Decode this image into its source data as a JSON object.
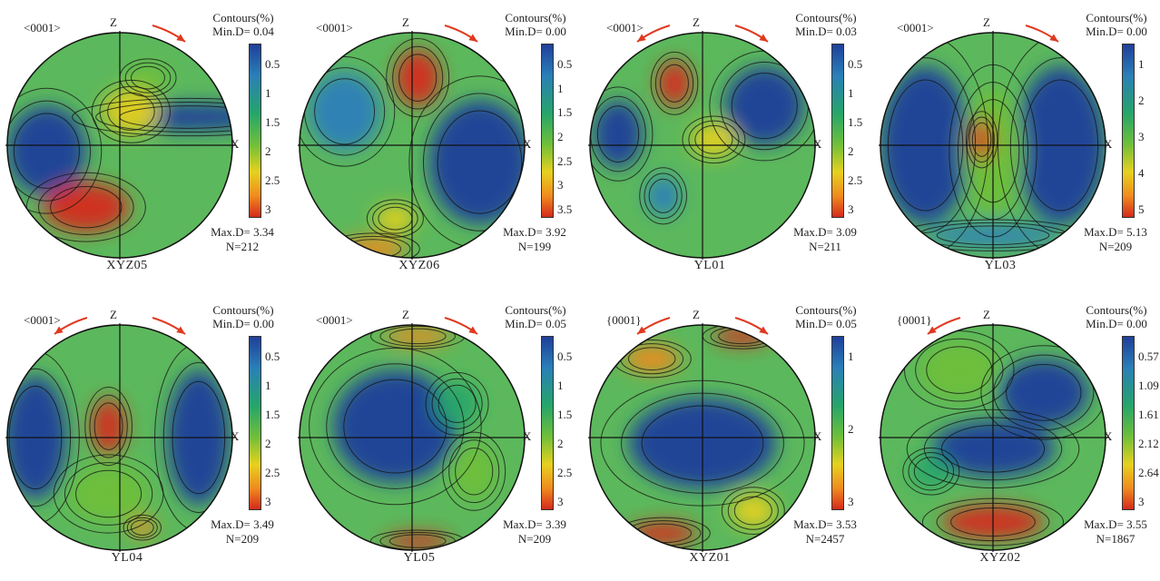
{
  "panels": [
    {
      "name": "XYZ05",
      "plane": "<0001>",
      "min": "Min.D= 0.04",
      "max": "Max.D= 3.34",
      "n": "N=212",
      "ticks": [
        "0.5",
        "1",
        "1.5",
        "2",
        "2.5",
        "3"
      ],
      "arrows": "right",
      "blobs": [
        [
          0.62,
          -0.25,
          0.75,
          0.12,
          "#1f3f9a"
        ],
        [
          -0.65,
          0.05,
          0.35,
          0.4,
          "#1f3f9a"
        ],
        [
          0.1,
          -0.3,
          0.25,
          0.2,
          "#e6d11f"
        ],
        [
          -0.3,
          0.55,
          0.38,
          0.22,
          "#d42a1c"
        ],
        [
          0.25,
          -0.6,
          0.18,
          0.12,
          "#6fbf3a"
        ]
      ]
    },
    {
      "name": "XYZ06",
      "plane": "<0001>",
      "min": "Min.D= 0.00",
      "max": "Max.D= 3.92",
      "n": "N=199",
      "ticks": [
        "0.5",
        "1",
        "1.5",
        "2",
        "2.5",
        "3",
        "3.5"
      ],
      "arrows": "right",
      "blobs": [
        [
          0.6,
          0.15,
          0.45,
          0.55,
          "#1f3f9a"
        ],
        [
          -0.6,
          -0.3,
          0.32,
          0.35,
          "#2a7fb8"
        ],
        [
          0.05,
          -0.6,
          0.2,
          0.25,
          "#d42a1c"
        ],
        [
          -0.15,
          0.65,
          0.18,
          0.12,
          "#e6d11f"
        ],
        [
          -0.35,
          0.92,
          0.3,
          0.1,
          "#f08a1e"
        ]
      ]
    },
    {
      "name": "YL01",
      "plane": "<0001>",
      "min": "Min.D= 0.03",
      "max": "Max.D= 3.09",
      "n": "N=211",
      "ticks": [
        "0.5",
        "1",
        "1.5",
        "2",
        "2.5",
        "3"
      ],
      "arrows": "both",
      "blobs": [
        [
          0.55,
          -0.35,
          0.35,
          0.35,
          "#1f3f9a"
        ],
        [
          -0.75,
          -0.1,
          0.22,
          0.3,
          "#1f3f9a"
        ],
        [
          -0.25,
          -0.55,
          0.15,
          0.2,
          "#d42a1c"
        ],
        [
          0.1,
          -0.05,
          0.2,
          0.15,
          "#e6d11f"
        ],
        [
          -0.35,
          0.45,
          0.15,
          0.18,
          "#2a7fb8"
        ]
      ]
    },
    {
      "name": "YL03",
      "plane": "<0001>",
      "min": "Min.D= 0.00",
      "max": "Max.D= 5.13",
      "n": "N=209",
      "ticks": [
        "1",
        "2",
        "3",
        "4",
        "5"
      ],
      "arrows": "right",
      "blobs": [
        [
          -0.6,
          0.0,
          0.4,
          0.7,
          "#1f3f9a"
        ],
        [
          0.6,
          0.0,
          0.4,
          0.7,
          "#1f3f9a"
        ],
        [
          0.0,
          0.05,
          0.28,
          0.55,
          "#6fbf3a"
        ],
        [
          -0.1,
          -0.05,
          0.1,
          0.18,
          "#d42a1c"
        ],
        [
          0.0,
          0.8,
          0.6,
          0.1,
          "#2a7fb8"
        ]
      ]
    },
    {
      "name": "YL04",
      "plane": "<0001>",
      "min": "Min.D= 0.00",
      "max": "Max.D= 3.49",
      "n": "N=209",
      "ticks": [
        "0.5",
        "1",
        "1.5",
        "2",
        "2.5",
        "3"
      ],
      "arrows": "both",
      "blobs": [
        [
          -0.75,
          0.0,
          0.28,
          0.55,
          "#1f3f9a"
        ],
        [
          0.7,
          0.0,
          0.28,
          0.6,
          "#1f3f9a"
        ],
        [
          -0.1,
          -0.1,
          0.15,
          0.25,
          "#d42a1c"
        ],
        [
          0.2,
          0.8,
          0.12,
          0.08,
          "#f08a1e"
        ],
        [
          -0.1,
          0.5,
          0.35,
          0.25,
          "#6fbf3a"
        ]
      ]
    },
    {
      "name": "YL05",
      "plane": "<0001>",
      "min": "Min.D= 0.05",
      "max": "Max.D= 3.39",
      "n": "N=209",
      "ticks": [
        "0.5",
        "1",
        "1.5",
        "2",
        "2.5",
        "3"
      ],
      "arrows": "right",
      "blobs": [
        [
          -0.15,
          -0.1,
          0.55,
          0.5,
          "#1f3f9a"
        ],
        [
          0.55,
          0.3,
          0.2,
          0.25,
          "#6fbf3a"
        ],
        [
          0.05,
          -0.9,
          0.3,
          0.08,
          "#f08a1e"
        ],
        [
          0.05,
          0.92,
          0.3,
          0.07,
          "#d42a1c"
        ],
        [
          0.4,
          -0.3,
          0.2,
          0.2,
          "#26a56a"
        ]
      ]
    },
    {
      "name": "XYZ01",
      "plane": "{0001}",
      "min": "Min.D= 0.05",
      "max": "Max.D= 3.53",
      "n": "N=2457",
      "ticks": [
        "1",
        "2",
        "3"
      ],
      "arrows": "both",
      "blobs": [
        [
          0.0,
          0.05,
          0.65,
          0.4,
          "#1f3f9a"
        ],
        [
          -0.45,
          -0.7,
          0.25,
          0.12,
          "#f08a1e"
        ],
        [
          0.35,
          -0.9,
          0.25,
          0.08,
          "#d42a1c"
        ],
        [
          -0.35,
          0.85,
          0.3,
          0.1,
          "#d42a1c"
        ],
        [
          0.45,
          0.65,
          0.2,
          0.15,
          "#e6d11f"
        ]
      ]
    },
    {
      "name": "XYZ02",
      "plane": "{0001}",
      "min": "Min.D= 0.00",
      "max": "Max.D= 3.55",
      "n": "N=1867",
      "ticks": [
        "0.57",
        "1.09",
        "1.61",
        "2.12",
        "2.64",
        "3"
      ],
      "arrows": "left",
      "blobs": [
        [
          0.45,
          -0.4,
          0.4,
          0.3,
          "#1f3f9a"
        ],
        [
          0.0,
          0.1,
          0.55,
          0.25,
          "#1f3f9a"
        ],
        [
          0.0,
          0.75,
          0.45,
          0.15,
          "#d42a1c"
        ],
        [
          -0.55,
          0.3,
          0.18,
          0.15,
          "#26a56a"
        ],
        [
          -0.3,
          -0.6,
          0.35,
          0.25,
          "#6fbf3a"
        ]
      ]
    }
  ],
  "axis_labels": {
    "z": "Z",
    "x": "X"
  },
  "contours_title": "Contours(%)",
  "colors": {
    "base": "#5cb85c",
    "ring": "#111111",
    "arrow": "#e0391f"
  }
}
